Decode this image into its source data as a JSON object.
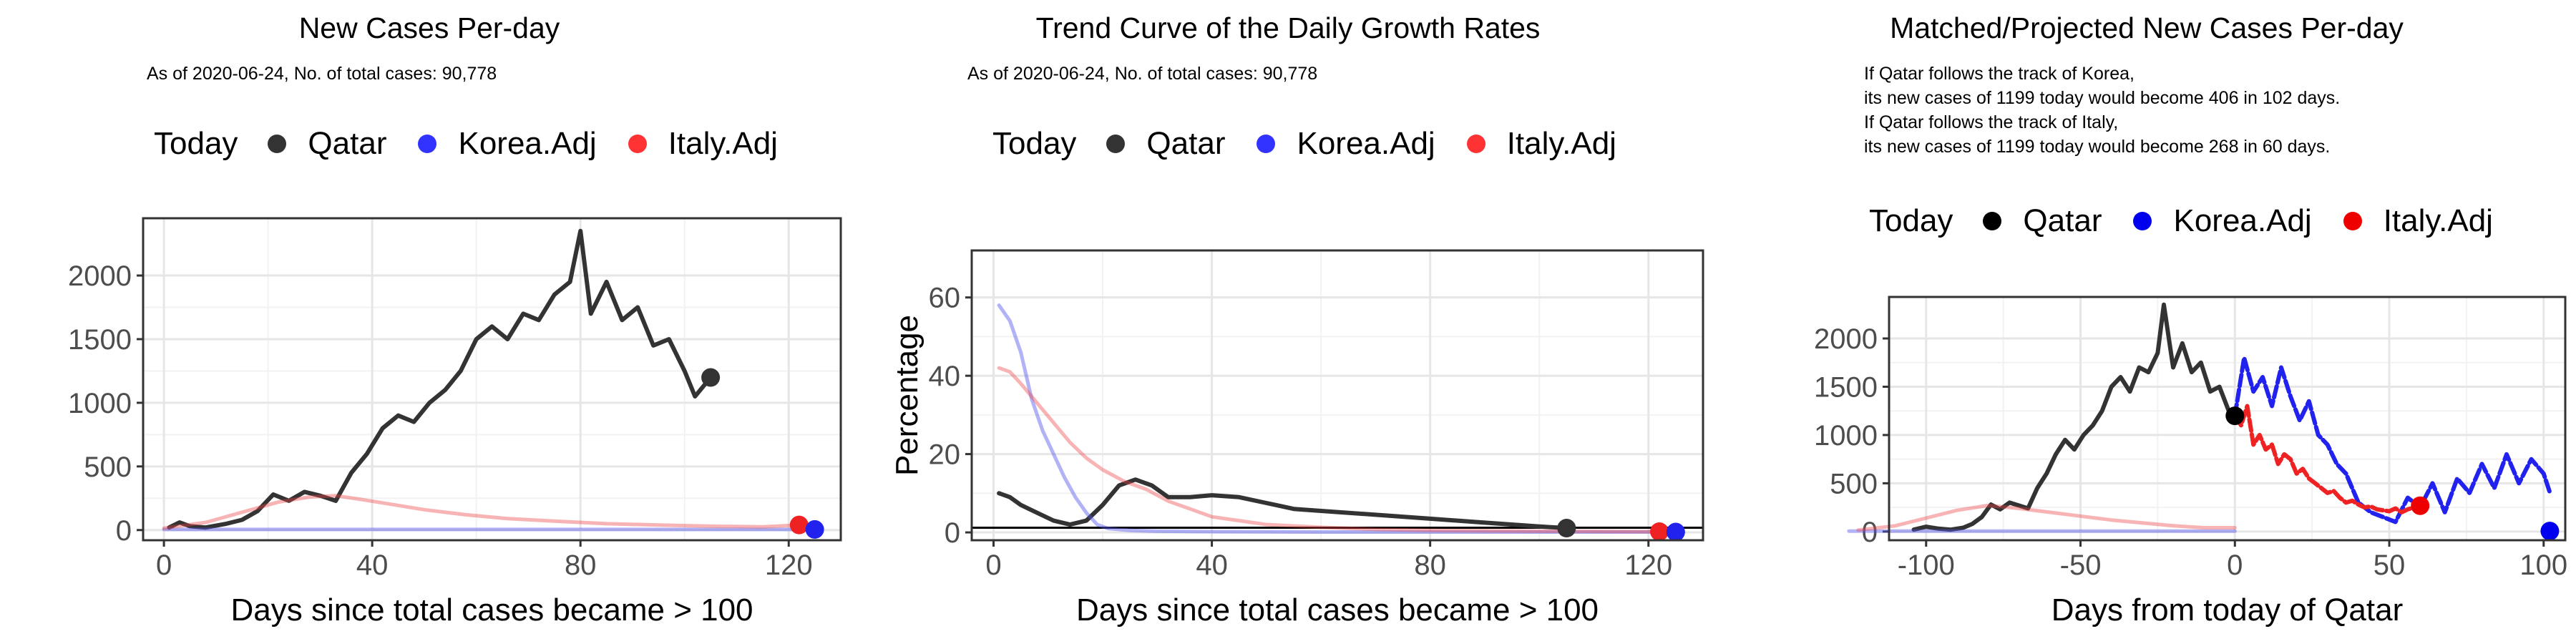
{
  "legend": {
    "title": "Today",
    "items": [
      {
        "label": "Qatar",
        "color": "#333333"
      },
      {
        "label": "Korea.Adj",
        "color": "#3333ff"
      },
      {
        "label": "Italy.Adj",
        "color": "#ff3333"
      }
    ]
  },
  "panel1": {
    "title": "New Cases Per-day",
    "subtitle": "As of 2020-06-24, No. of total cases: 90,778"
  },
  "panel2": {
    "title": "Trend Curve of the Daily Growth Rates",
    "subtitle": "As of 2020-06-24, No. of total cases: 90,778"
  },
  "panel3": {
    "title": "Matched/Projected New Cases Per-day",
    "lines": [
      "If Qatar follows the track of Korea,",
      "its new cases of 1199 today would become 406 in 102 days.",
      "If Qatar follows the track of Italy,",
      "its new cases of 1199 today would become 268 in 60 days."
    ]
  },
  "chart_data": [
    {
      "type": "line",
      "title": "New Cases Per-day",
      "xlabel": "Days since total cases became > 100",
      "ylabel": "",
      "xlim": [
        -4,
        130
      ],
      "ylim": [
        -80,
        2450
      ],
      "xticks": [
        0,
        40,
        80,
        120
      ],
      "yticks": [
        0,
        500,
        1000,
        1500,
        2000
      ],
      "grid": true,
      "legend_position": "top",
      "series": [
        {
          "name": "Qatar",
          "x": [
            1,
            3,
            5,
            8,
            12,
            15,
            18,
            21,
            24,
            27,
            30,
            33,
            36,
            39,
            42,
            45,
            48,
            51,
            54,
            57,
            60,
            63,
            66,
            69,
            72,
            75,
            78,
            80,
            82,
            85,
            88,
            91,
            94,
            97,
            100,
            102,
            105
          ],
          "y": [
            20,
            60,
            30,
            20,
            50,
            80,
            150,
            280,
            230,
            300,
            270,
            230,
            450,
            600,
            800,
            900,
            850,
            1000,
            1100,
            1250,
            1500,
            1600,
            1500,
            1700,
            1650,
            1850,
            1950,
            2350,
            1700,
            1950,
            1650,
            1750,
            1450,
            1500,
            1250,
            1050,
            1199
          ]
        },
        {
          "name": "Korea.Adj",
          "x": [
            0,
            125
          ],
          "y": [
            5,
            5
          ]
        },
        {
          "name": "Italy.Adj",
          "x": [
            0,
            8,
            15,
            22,
            28,
            33,
            38,
            44,
            50,
            58,
            66,
            75,
            85,
            95,
            105,
            115,
            122
          ],
          "y": [
            15,
            60,
            140,
            220,
            260,
            270,
            240,
            200,
            160,
            120,
            90,
            70,
            50,
            40,
            30,
            25,
            40
          ]
        }
      ],
      "today_points": [
        {
          "series": "Qatar",
          "x": 105,
          "y": 1199
        },
        {
          "series": "Italy.Adj",
          "x": 122,
          "y": 40
        },
        {
          "series": "Korea.Adj",
          "x": 125,
          "y": 5
        }
      ]
    },
    {
      "type": "line",
      "title": "Trend Curve of the Daily Growth Rates",
      "xlabel": "Days since total cases became > 100",
      "ylabel": "Percentage",
      "xlim": [
        -4,
        130
      ],
      "ylim": [
        -2,
        72
      ],
      "xticks": [
        0,
        40,
        80,
        120
      ],
      "yticks": [
        0,
        20,
        40,
        60
      ],
      "grid": true,
      "legend_position": "top",
      "hline": 1.2,
      "series": [
        {
          "name": "Qatar",
          "x": [
            1,
            3,
            5,
            8,
            11,
            14,
            17,
            20,
            23,
            26,
            29,
            32,
            36,
            40,
            45,
            50,
            55,
            60,
            70,
            80,
            90,
            100,
            105
          ],
          "y": [
            10,
            9,
            7,
            5,
            3,
            2,
            3,
            7,
            12,
            13.5,
            12,
            9,
            9,
            9.5,
            9,
            7.5,
            6,
            5.5,
            4.5,
            3.5,
            2.5,
            1.5,
            1.1
          ]
        },
        {
          "name": "Korea.Adj",
          "x": [
            1,
            3,
            5,
            7,
            9,
            11,
            13,
            15,
            17,
            19,
            21,
            25,
            30,
            40,
            60,
            80,
            100,
            125
          ],
          "y": [
            58,
            54,
            46,
            34,
            26,
            20,
            14,
            9,
            5,
            2,
            1,
            0.5,
            0.3,
            0.2,
            0.1,
            0.1,
            0.1,
            0.1
          ]
        },
        {
          "name": "Italy.Adj",
          "x": [
            1,
            3,
            5,
            8,
            11,
            14,
            17,
            20,
            24,
            28,
            32,
            36,
            40,
            45,
            50,
            60,
            70,
            80,
            100,
            122
          ],
          "y": [
            42,
            41,
            38,
            33,
            28,
            23,
            19,
            16,
            13,
            11,
            8,
            6,
            4,
            3,
            2,
            1.3,
            0.8,
            0.5,
            0.3,
            0.2
          ]
        }
      ],
      "today_points": [
        {
          "series": "Qatar",
          "x": 105,
          "y": 1.1
        },
        {
          "series": "Italy.Adj",
          "x": 122,
          "y": 0.2
        },
        {
          "series": "Korea.Adj",
          "x": 125,
          "y": 0.1
        }
      ]
    },
    {
      "type": "line",
      "title": "Matched/Projected New Cases Per-day",
      "xlabel": "Days from today of Qatar",
      "ylabel": "",
      "xlim": [
        -112,
        107
      ],
      "ylim": [
        -90,
        2430
      ],
      "xticks": [
        -100,
        -50,
        0,
        50,
        100
      ],
      "yticks": [
        0,
        500,
        1000,
        1500,
        2000
      ],
      "grid": true,
      "legend_position": "top",
      "series": [
        {
          "name": "Qatar",
          "x": [
            -104,
            -100,
            -96,
            -92,
            -88,
            -85,
            -82,
            -79,
            -76,
            -73,
            -70,
            -67,
            -64,
            -61,
            -58,
            -55,
            -52,
            -49,
            -46,
            -43,
            -40,
            -37,
            -34,
            -31,
            -28,
            -25,
            -23,
            -20,
            -17,
            -14,
            -11,
            -8,
            -5,
            -2,
            0
          ],
          "y": [
            20,
            50,
            30,
            20,
            40,
            80,
            150,
            280,
            230,
            300,
            270,
            240,
            450,
            600,
            800,
            950,
            850,
            1000,
            1100,
            1250,
            1500,
            1600,
            1450,
            1700,
            1650,
            1850,
            2350,
            1700,
            1950,
            1650,
            1750,
            1450,
            1500,
            1250,
            1199
          ]
        },
        {
          "name": "Korea.Adj (past)",
          "x": [
            -125,
            -100,
            -50,
            0
          ],
          "y": [
            5,
            5,
            5,
            5
          ]
        },
        {
          "name": "Italy.Adj (past)",
          "x": [
            -122,
            -110,
            -100,
            -90,
            -80,
            -70,
            -60,
            -50,
            -40,
            -30,
            -20,
            -10,
            0
          ],
          "y": [
            15,
            60,
            140,
            220,
            270,
            240,
            200,
            160,
            120,
            90,
            60,
            40,
            40
          ]
        },
        {
          "name": "Korea.Adj",
          "x": [
            0,
            3,
            6,
            9,
            12,
            15,
            18,
            21,
            24,
            27,
            30,
            33,
            36,
            40,
            44,
            48,
            52,
            56,
            60,
            64,
            68,
            72,
            76,
            80,
            84,
            88,
            92,
            96,
            100,
            102
          ],
          "y": [
            1199,
            1800,
            1450,
            1600,
            1300,
            1700,
            1400,
            1150,
            1350,
            1000,
            900,
            700,
            600,
            300,
            200,
            150,
            100,
            350,
            250,
            500,
            200,
            550,
            400,
            700,
            450,
            800,
            500,
            750,
            600,
            406
          ]
        },
        {
          "name": "Italy.Adj",
          "x": [
            0,
            2,
            4,
            6,
            8,
            10,
            12,
            14,
            16,
            18,
            20,
            22,
            24,
            26,
            28,
            30,
            32,
            34,
            36,
            38,
            40,
            42,
            44,
            46,
            48,
            50,
            52,
            54,
            56,
            58,
            60
          ],
          "y": [
            1199,
            1100,
            1300,
            900,
            1000,
            850,
            900,
            700,
            800,
            750,
            600,
            650,
            550,
            500,
            450,
            400,
            420,
            350,
            300,
            320,
            280,
            250,
            260,
            230,
            220,
            210,
            240,
            200,
            230,
            250,
            268
          ]
        }
      ],
      "today_points": [
        {
          "series": "Qatar",
          "x": 0,
          "y": 1199
        },
        {
          "series": "Italy.Adj",
          "x": 60,
          "y": 268
        },
        {
          "series": "Korea.Adj",
          "x": 102,
          "y": 5
        }
      ]
    }
  ]
}
